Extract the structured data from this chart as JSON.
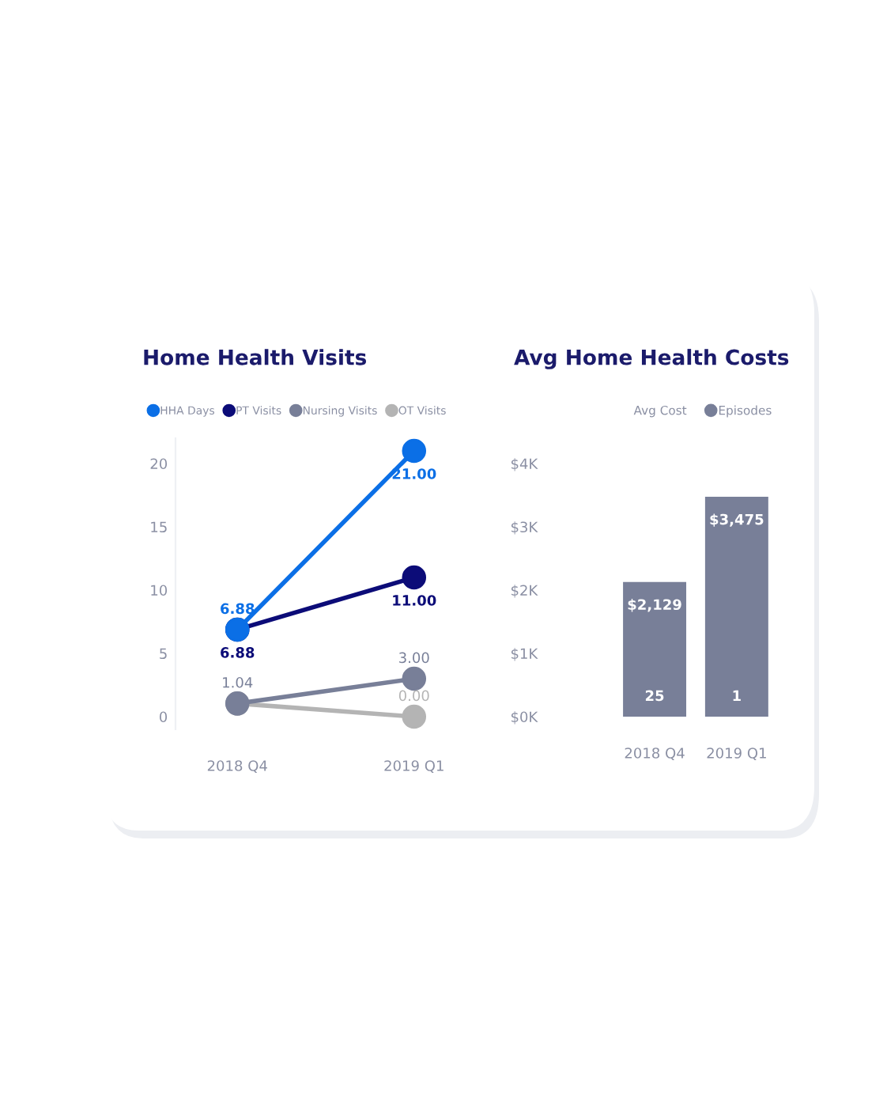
{
  "chart_data": [
    {
      "type": "line",
      "title": "Home Health Visits",
      "categories": [
        "2018 Q4",
        "2019 Q1"
      ],
      "ylim": [
        -1,
        22
      ],
      "yticks": [
        0,
        5,
        10,
        15,
        20
      ],
      "grid": false,
      "legend": "top",
      "marker": "circle",
      "line_style": "solid",
      "series": [
        {
          "name": "HHA Days",
          "color": "#0b6fe6",
          "values": [
            6.88,
            21.0
          ],
          "value_labels": [
            "6.88",
            "21.00"
          ]
        },
        {
          "name": "PT Visits",
          "color": "#0c0c78",
          "values": [
            6.88,
            11.0
          ],
          "value_labels": [
            "6.88",
            "11.00"
          ]
        },
        {
          "name": "Nursing Visits",
          "color": "#787f98",
          "values": [
            1.04,
            3.0
          ],
          "value_labels": [
            "1.04",
            "3.00"
          ]
        },
        {
          "name": "OT Visits",
          "color": "#b4b4b4",
          "values": [
            1.04,
            0.0
          ],
          "value_labels": [
            null,
            "0.00"
          ]
        }
      ]
    },
    {
      "type": "bar",
      "title": "Avg Home Health Costs",
      "categories": [
        "2018 Q4",
        "2019 Q1"
      ],
      "ylim": [
        0,
        4000
      ],
      "yticks": [
        {
          "value": 0,
          "label": "$0K"
        },
        {
          "value": 1000,
          "label": "$1K"
        },
        {
          "value": 2000,
          "label": "$2K"
        },
        {
          "value": 3000,
          "label": "$3K"
        },
        {
          "value": 4000,
          "label": "$4K"
        }
      ],
      "grid": false,
      "legend": "top right",
      "series": [
        {
          "name": "Avg Cost",
          "color": "#787f98",
          "values": [
            2129,
            3475
          ],
          "value_labels": [
            "$2,129",
            "$3,475"
          ]
        },
        {
          "name": "Episodes",
          "type": "other",
          "color": "#787f98",
          "values": [
            null,
            null
          ]
        }
      ],
      "annotations": [
        {
          "text": "25",
          "x": "2018 Q4",
          "y": 0
        },
        {
          "text": "1",
          "x": "2019 Q1",
          "y": 0
        }
      ]
    }
  ]
}
